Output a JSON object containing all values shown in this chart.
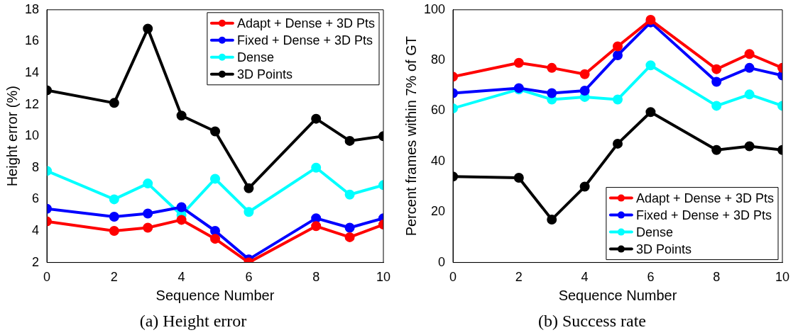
{
  "chart_data": [
    {
      "type": "line",
      "title": "(a) Height error",
      "xlabel": "Sequence Number",
      "ylabel": "Height error (%)",
      "x": [
        0,
        2,
        3,
        4,
        5,
        6,
        8,
        9,
        10
      ],
      "xlim": [
        0,
        10
      ],
      "xticks": [
        0,
        2,
        4,
        6,
        8,
        10
      ],
      "ylim": [
        2,
        18
      ],
      "yticks": [
        2,
        4,
        6,
        8,
        10,
        12,
        14,
        16,
        18
      ],
      "grid": false,
      "legend": "top right",
      "marker": "circle",
      "line_style": "solid",
      "series": [
        {
          "name": "Adapt + Dense + 3D Pts",
          "color": "#ff0000",
          "values": [
            4.6,
            4.0,
            4.2,
            4.7,
            3.5,
            2.0,
            4.3,
            3.6,
            4.4
          ]
        },
        {
          "name": "Fixed + Dense + 3D Pts",
          "color": "#0000ff",
          "values": [
            5.4,
            4.9,
            5.1,
            5.5,
            4.0,
            2.2,
            4.8,
            4.2,
            4.8
          ]
        },
        {
          "name": "Dense",
          "color": "#00ffff",
          "values": [
            7.8,
            6.0,
            7.0,
            5.0,
            7.3,
            5.2,
            8.0,
            6.3,
            6.9
          ]
        },
        {
          "name": "3D Points",
          "color": "#000000",
          "values": [
            12.9,
            12.1,
            16.8,
            11.3,
            10.3,
            6.7,
            11.1,
            9.7,
            10.0
          ]
        }
      ]
    },
    {
      "type": "line",
      "title": "(b) Success rate",
      "xlabel": "Sequence Number",
      "ylabel": "Percent frames within 7% of GT",
      "x": [
        0,
        2,
        3,
        4,
        5,
        6,
        8,
        9,
        10
      ],
      "xlim": [
        0,
        10
      ],
      "xticks": [
        0,
        2,
        4,
        6,
        8,
        10
      ],
      "ylim": [
        0,
        100
      ],
      "yticks": [
        0,
        20,
        40,
        60,
        80,
        100
      ],
      "grid": false,
      "legend": "bottom right",
      "marker": "circle",
      "line_style": "solid",
      "series": [
        {
          "name": "Adapt + Dense + 3D Pts",
          "color": "#ff0000",
          "values": [
            73.5,
            79,
            77,
            74.5,
            85.5,
            96,
            76.5,
            82.5,
            77
          ]
        },
        {
          "name": "Fixed + Dense + 3D Pts",
          "color": "#0000ff",
          "values": [
            67,
            69,
            67,
            68,
            82,
            95,
            71.5,
            77,
            74
          ]
        },
        {
          "name": "Dense",
          "color": "#00ffff",
          "values": [
            61,
            68.5,
            64.5,
            65.5,
            64.5,
            78,
            62,
            66.5,
            62
          ]
        },
        {
          "name": "3D Points",
          "color": "#000000",
          "values": [
            34,
            33.5,
            17,
            30,
            47,
            59.5,
            44.5,
            46,
            44.5
          ]
        }
      ]
    }
  ]
}
